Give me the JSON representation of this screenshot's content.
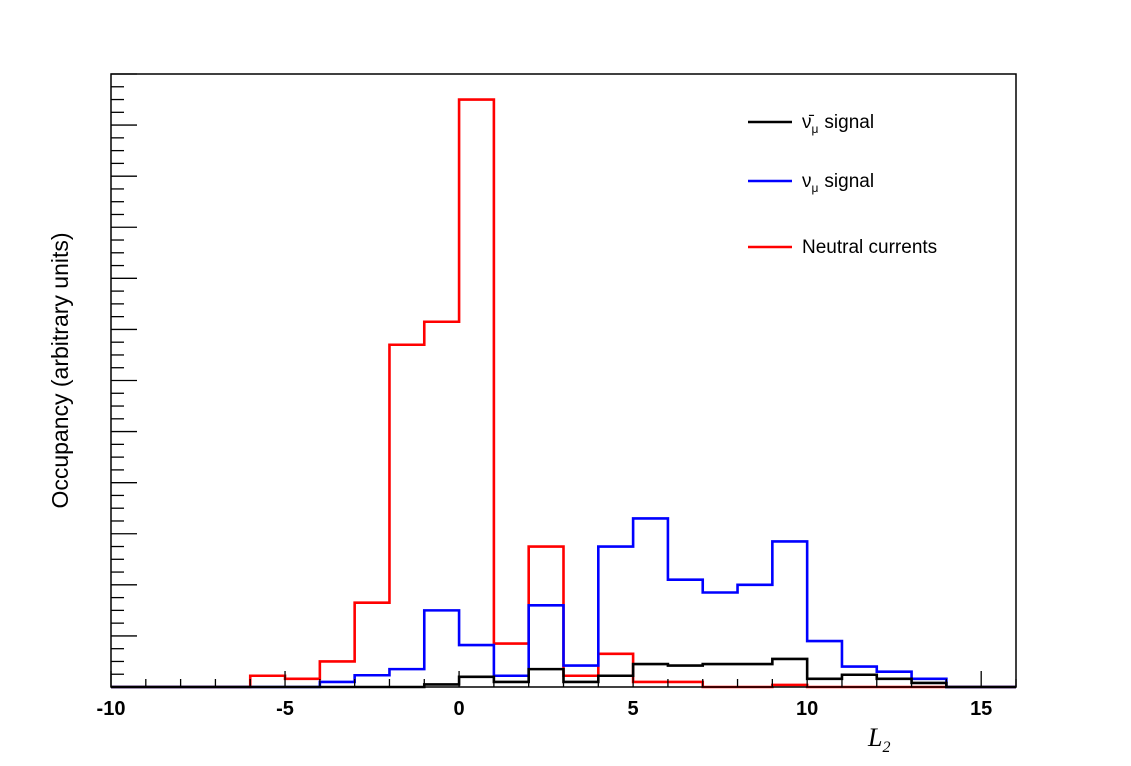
{
  "chart_data": {
    "type": "histogram",
    "ylabel": "Occupancy (arbitrary units)",
    "xlabel": {
      "main": "L",
      "sub": "2"
    },
    "xlim": [
      -10,
      16
    ],
    "ylim": [
      0,
      120
    ],
    "x_ticks": [
      -10,
      -5,
      0,
      5,
      10,
      15
    ],
    "x_tick_labels": [
      "-10",
      "-5",
      "0",
      "5",
      "10",
      "15"
    ],
    "y_tick_labels_shown": false,
    "bin_edges": [
      -10,
      -9,
      -8,
      -7,
      -6,
      -5,
      -4,
      -3,
      -2,
      -1,
      0,
      1,
      2,
      3,
      4,
      5,
      6,
      7,
      8,
      9,
      10,
      11,
      12,
      13,
      14,
      15,
      16
    ],
    "series": [
      {
        "name": "Neutral currents",
        "color": "#ff0000",
        "values": [
          0,
          0,
          0,
          0,
          2.2,
          1.6,
          5,
          16.5,
          67,
          71.5,
          115,
          8.5,
          27.5,
          2.2,
          6.5,
          1,
          1,
          0,
          0,
          0.4,
          0,
          0,
          0,
          0,
          0,
          0
        ]
      },
      {
        "name": "ν_μ signal",
        "color": "#0000ff",
        "values": [
          0,
          0,
          0,
          0,
          0,
          0,
          1,
          2.3,
          3.5,
          15,
          8.2,
          2.2,
          16,
          4.2,
          27.5,
          33,
          21,
          18.5,
          20,
          28.5,
          9,
          4,
          3,
          1.6,
          0,
          0
        ]
      },
      {
        "name": "ν̄_μ signal",
        "color": "#000000",
        "values": [
          0,
          0,
          0,
          0,
          0,
          0,
          0,
          0,
          0,
          0.5,
          2,
          1,
          3.5,
          1,
          2.2,
          4.5,
          4.2,
          4.5,
          4.5,
          5.5,
          1.6,
          2.4,
          1.6,
          0.8,
          0,
          0
        ]
      }
    ],
    "legend": {
      "placement": "top-right",
      "entries": [
        {
          "label": "signal",
          "symbol": "ν̄",
          "sub": "μ",
          "color": "#000000"
        },
        {
          "label": "signal",
          "symbol": "ν",
          "sub": "μ",
          "color": "#0000ff"
        },
        {
          "label": "Neutral currents",
          "symbol": "",
          "sub": "",
          "color": "#ff0000"
        }
      ]
    },
    "grid": false
  }
}
